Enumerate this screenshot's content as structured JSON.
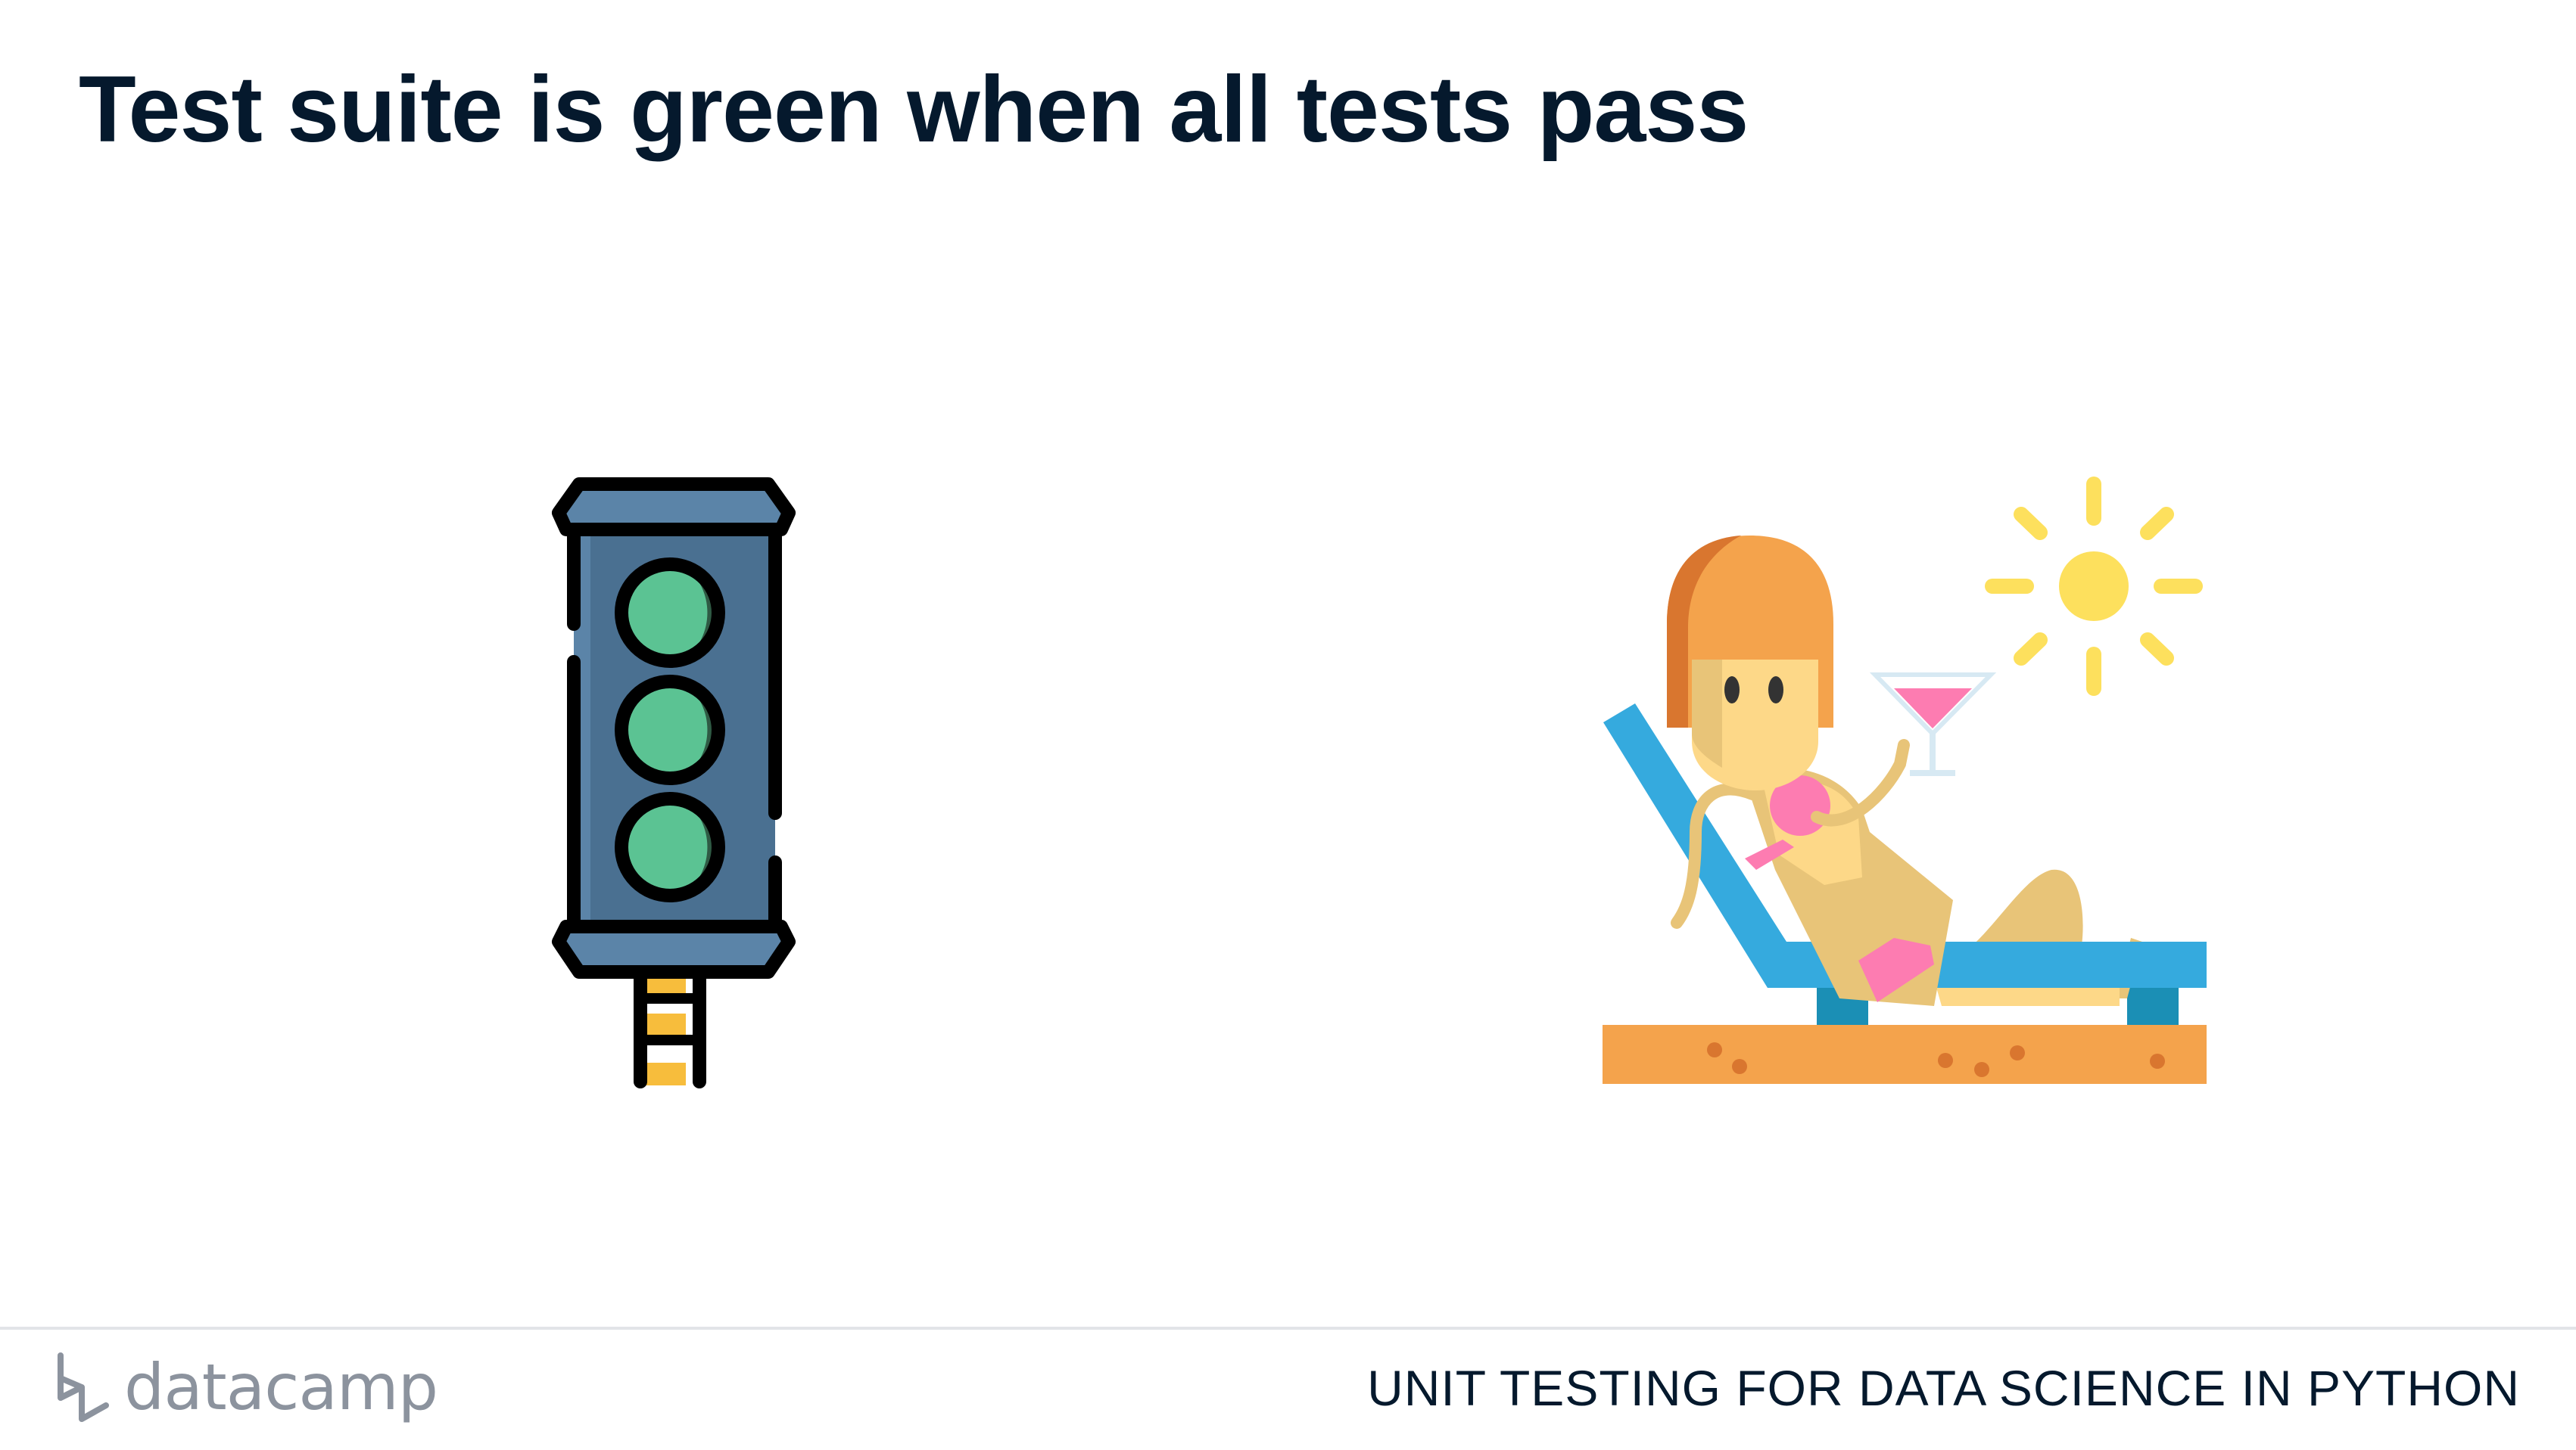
{
  "slide": {
    "title": "Test suite is green when all tests pass"
  },
  "illustrations": {
    "left": "traffic-light-icon",
    "right": "sunbathing-woman-icon"
  },
  "footer": {
    "logo_text": "datacamp",
    "course_title": "UNIT TESTING FOR DATA SCIENCE IN PYTHON"
  },
  "colors": {
    "title": "#05192d",
    "traffic_light_body": "#4a7091",
    "traffic_light_lamp": "#5bc393",
    "lounger": "#35aade",
    "sand": "#f4a34c",
    "sun": "#fde05d",
    "logo": "#8c939e"
  }
}
